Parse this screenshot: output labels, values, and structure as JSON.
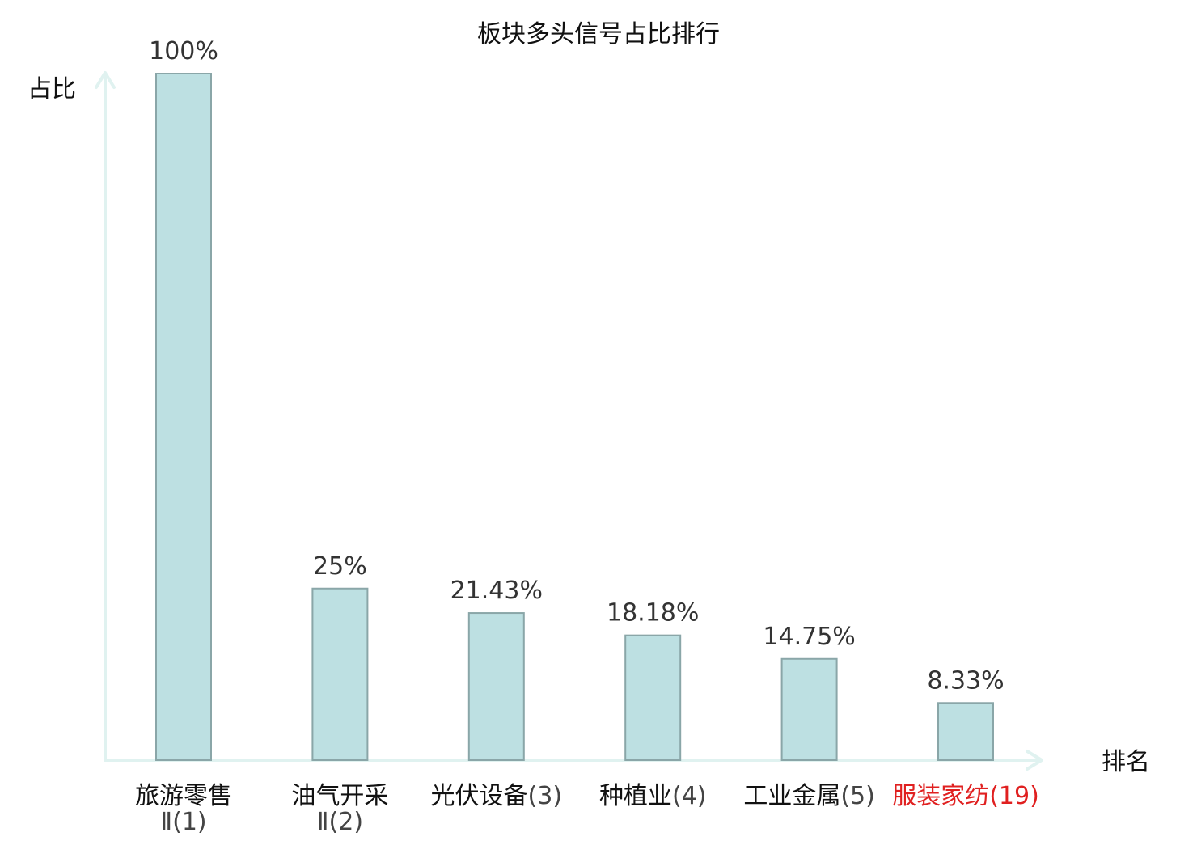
{
  "chart_data": {
    "type": "bar",
    "title": "板块多头信号占比排行",
    "ylabel": "占比",
    "xlabel": "排名",
    "ylim": [
      0,
      100
    ],
    "grid": false,
    "legend": "none",
    "bar_color": "#bde0e2",
    "bar_border_color": "#8aa6a8",
    "axis_color": "#e0f2f0",
    "highlight_color": "#e02020",
    "categories": [
      {
        "name_line1": "旅游零售",
        "name_line2": "Ⅱ",
        "rank": "(1)",
        "value": 100,
        "label": "100%",
        "highlight": false
      },
      {
        "name_line1": "油气开采",
        "name_line2": "Ⅱ",
        "rank": "(2)",
        "value": 25,
        "label": "25%",
        "highlight": false
      },
      {
        "name_line1": "光伏设备",
        "name_line2": "",
        "rank": "(3)",
        "value": 21.43,
        "label": "21.43%",
        "highlight": false
      },
      {
        "name_line1": "种植业",
        "name_line2": "",
        "rank": "(4)",
        "value": 18.18,
        "label": "18.18%",
        "highlight": false
      },
      {
        "name_line1": "工业金属",
        "name_line2": "",
        "rank": "(5)",
        "value": 14.75,
        "label": "14.75%",
        "highlight": false
      },
      {
        "name_line1": "服装家纺",
        "name_line2": "",
        "rank": "(19)",
        "value": 8.33,
        "label": "8.33%",
        "highlight": true
      }
    ]
  }
}
